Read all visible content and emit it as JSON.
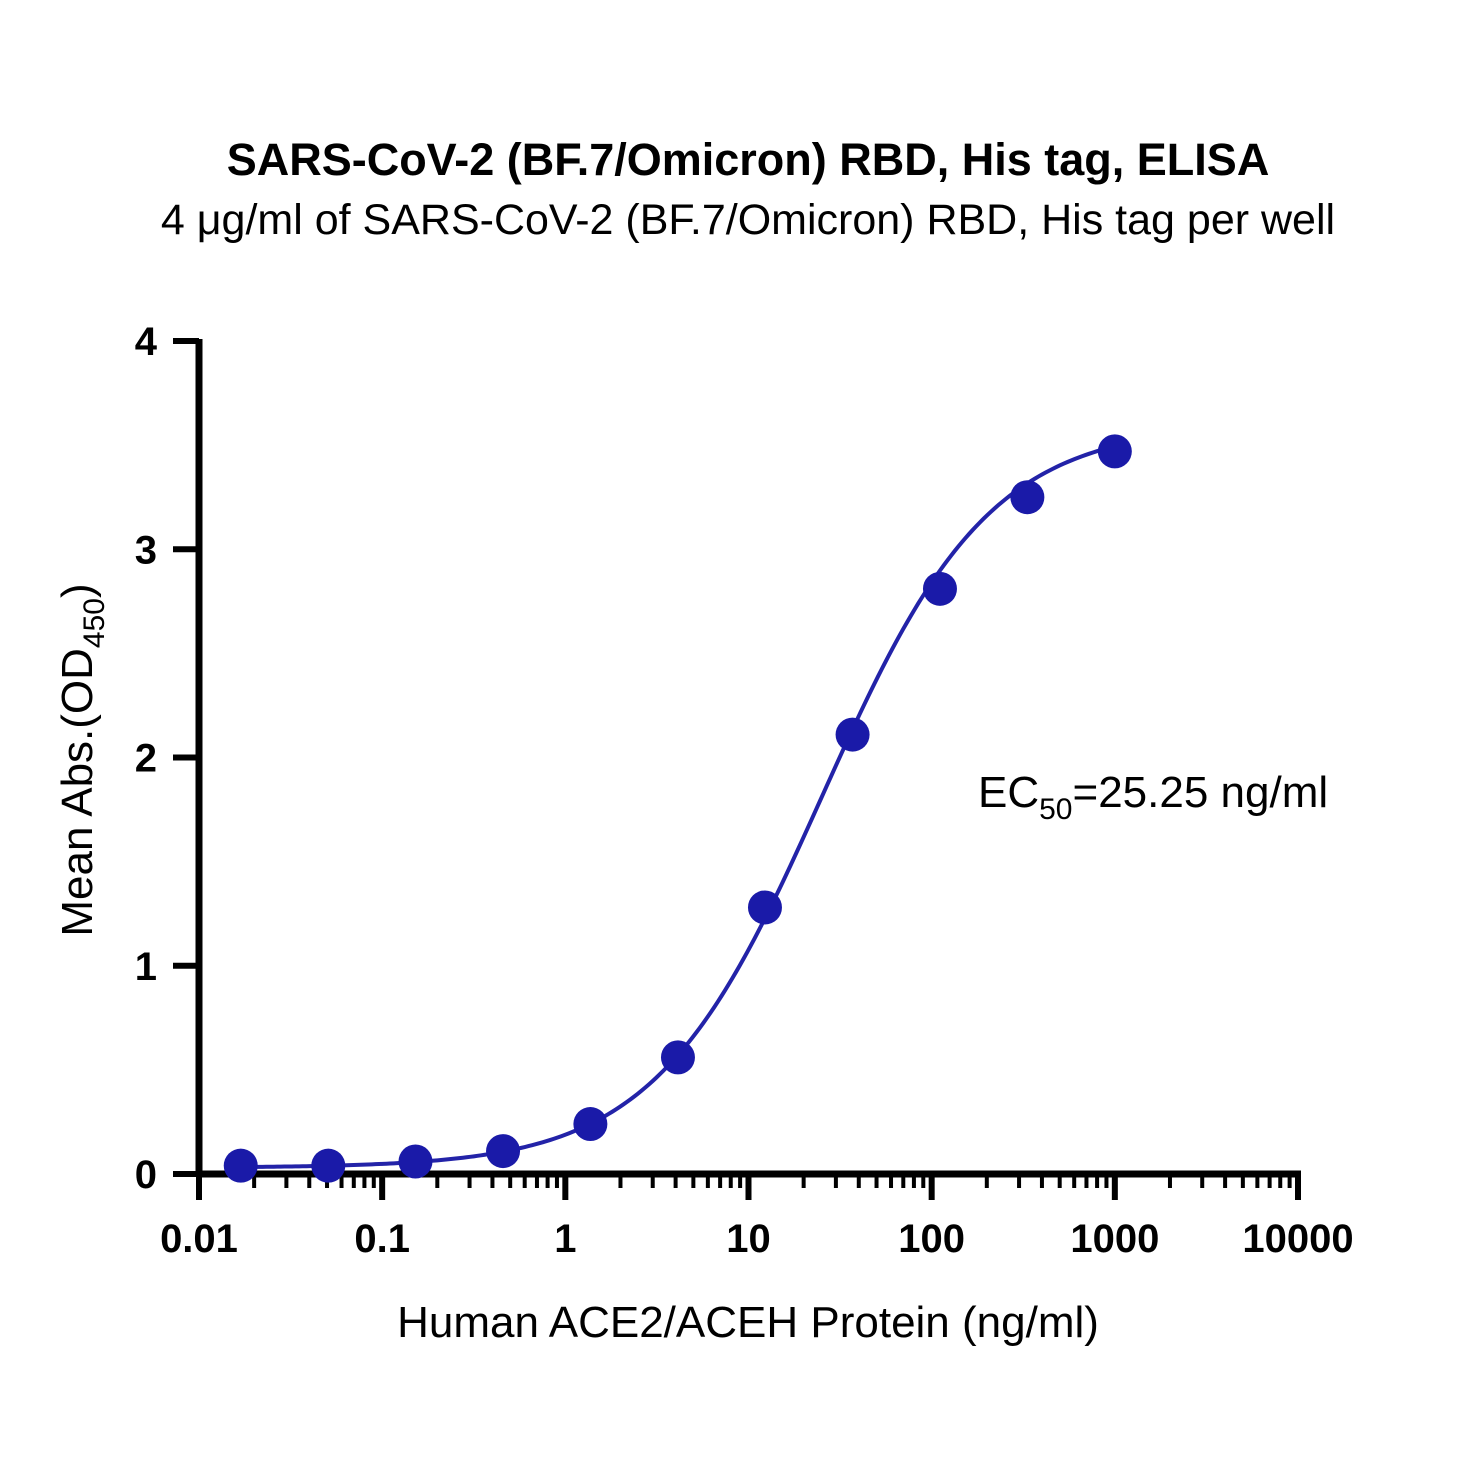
{
  "chart_data": {
    "type": "scatter",
    "title": "SARS-CoV-2 (BF.7/Omicron) RBD, His tag, ELISA",
    "subtitle": "4 μg/ml of SARS-CoV-2 (BF.7/Omicron) RBD, His tag per well",
    "xlabel": "Human ACE2/ACEH Protein (ng/ml)",
    "ylabel": {
      "main": "Mean Abs.(OD",
      "sub": "450",
      "suffix": ")"
    },
    "x_scale": "log",
    "xlim": [
      0.01,
      10000
    ],
    "ylim": [
      0,
      4
    ],
    "x_ticks": [
      0.01,
      0.1,
      1,
      10,
      100,
      1000,
      10000
    ],
    "x_tick_labels": [
      "0.01",
      "0.1",
      "1",
      "10",
      "100",
      "1000",
      "10000"
    ],
    "y_ticks": [
      0,
      1,
      2,
      3,
      4
    ],
    "y_tick_labels": [
      "0",
      "1",
      "2",
      "3",
      "4"
    ],
    "series": [
      {
        "color": "#1a1aa8",
        "line_color": "#2323a8",
        "x": [
          0.0169,
          0.0508,
          0.152,
          0.457,
          1.37,
          4.12,
          12.3,
          37.0,
          111,
          333,
          1000
        ],
        "y": [
          0.04,
          0.04,
          0.06,
          0.11,
          0.24,
          0.56,
          1.28,
          2.11,
          2.81,
          3.25,
          3.47
        ]
      }
    ],
    "fit": {
      "type": "4PL",
      "bottom": 0.03,
      "top": 3.6,
      "ec50": 25.25,
      "hill": 0.95
    },
    "annotation": {
      "prefix": "EC",
      "sub": "50",
      "suffix": "=25.25 ng/ml"
    },
    "grid": false,
    "legend": "none"
  }
}
